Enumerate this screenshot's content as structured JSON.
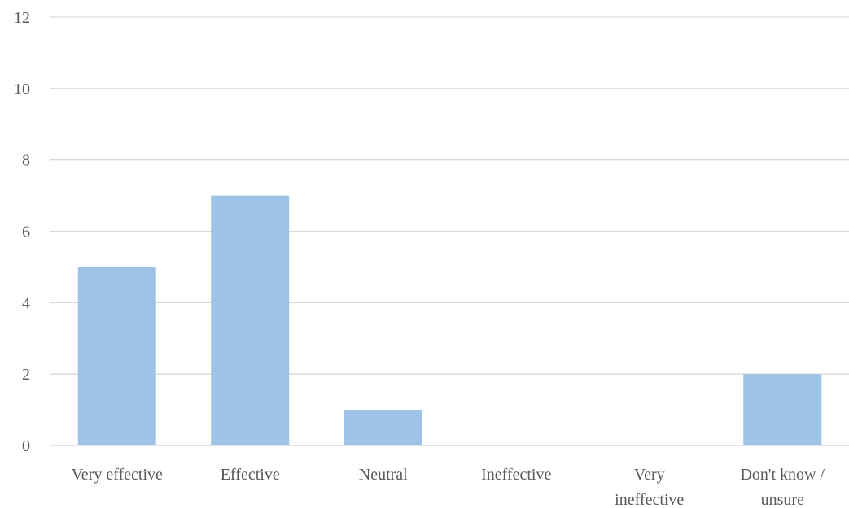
{
  "chart_data": {
    "type": "bar",
    "title": "",
    "xlabel": "",
    "ylabel": "",
    "categories": [
      [
        "Very effective"
      ],
      [
        "Effective"
      ],
      [
        "Neutral"
      ],
      [
        "Ineffective"
      ],
      [
        "Very",
        "ineffective"
      ],
      [
        "Don't know /",
        "unsure"
      ]
    ],
    "values": [
      5,
      7,
      1,
      0,
      0,
      2
    ],
    "ylim": [
      0,
      12
    ],
    "yticks": [
      "0",
      "2",
      "4",
      "6",
      "8",
      "10",
      "12"
    ],
    "grid": true,
    "legend": "none",
    "colors": {
      "bar": "#9dc3e6",
      "grid": "#d9d9d9",
      "axis": "#d9d9d9",
      "text": "#595959"
    }
  }
}
